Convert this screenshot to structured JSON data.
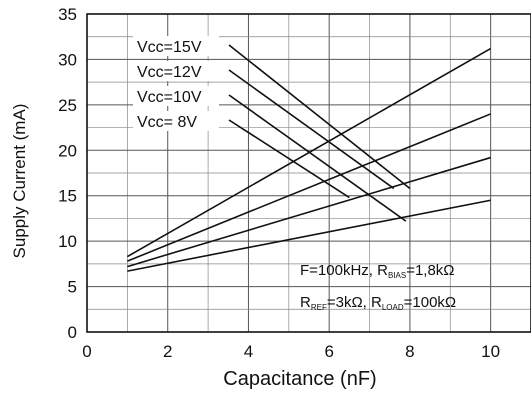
{
  "chart_data": {
    "type": "line",
    "title": "",
    "xlabel": "Capacitance (nF)",
    "ylabel": "Supply Current (mA)",
    "xlim": [
      0,
      11
    ],
    "ylim": [
      0,
      35
    ],
    "xticks": [
      "0",
      "2",
      "4",
      "6",
      "8",
      "10"
    ],
    "yticks": [
      "0",
      "5",
      "10",
      "15",
      "20",
      "25",
      "30",
      "35"
    ],
    "grid": true,
    "series": [
      {
        "name": "Vcc=15V",
        "x": [
          1,
          10
        ],
        "y": [
          8.3,
          31.2
        ]
      },
      {
        "name": "Vcc=12V",
        "x": [
          1,
          10
        ],
        "y": [
          7.8,
          24.0
        ]
      },
      {
        "name": "Vcc=10V",
        "x": [
          1,
          10
        ],
        "y": [
          7.2,
          19.2
        ]
      },
      {
        "name": "Vcc= 8V",
        "x": [
          1,
          10
        ],
        "y": [
          6.7,
          14.5
        ]
      }
    ],
    "legend_position": "top-left",
    "legend_pointers": [
      {
        "label": "Vcc=15V",
        "to_x": 8,
        "to_y": 15.8
      },
      {
        "label": "Vcc=12V",
        "to_x": 7.6,
        "to_y": 15.8
      },
      {
        "label": "Vcc=10V",
        "to_x": 7.9,
        "to_y": 12.2
      },
      {
        "label": "Vcc= 8V",
        "to_x": 6.5,
        "to_y": 14.8
      }
    ],
    "annotations": {
      "line1_main": "F=100kHz,  R",
      "line1_sub": "BIAS",
      "line1_tail": "=1,8kΩ",
      "line2_a": "R",
      "line2_a_sub": "REF",
      "line2_mid": "=3kΩ, R",
      "line2_b_sub": "LOAD",
      "line2_tail": "=100kΩ"
    }
  }
}
